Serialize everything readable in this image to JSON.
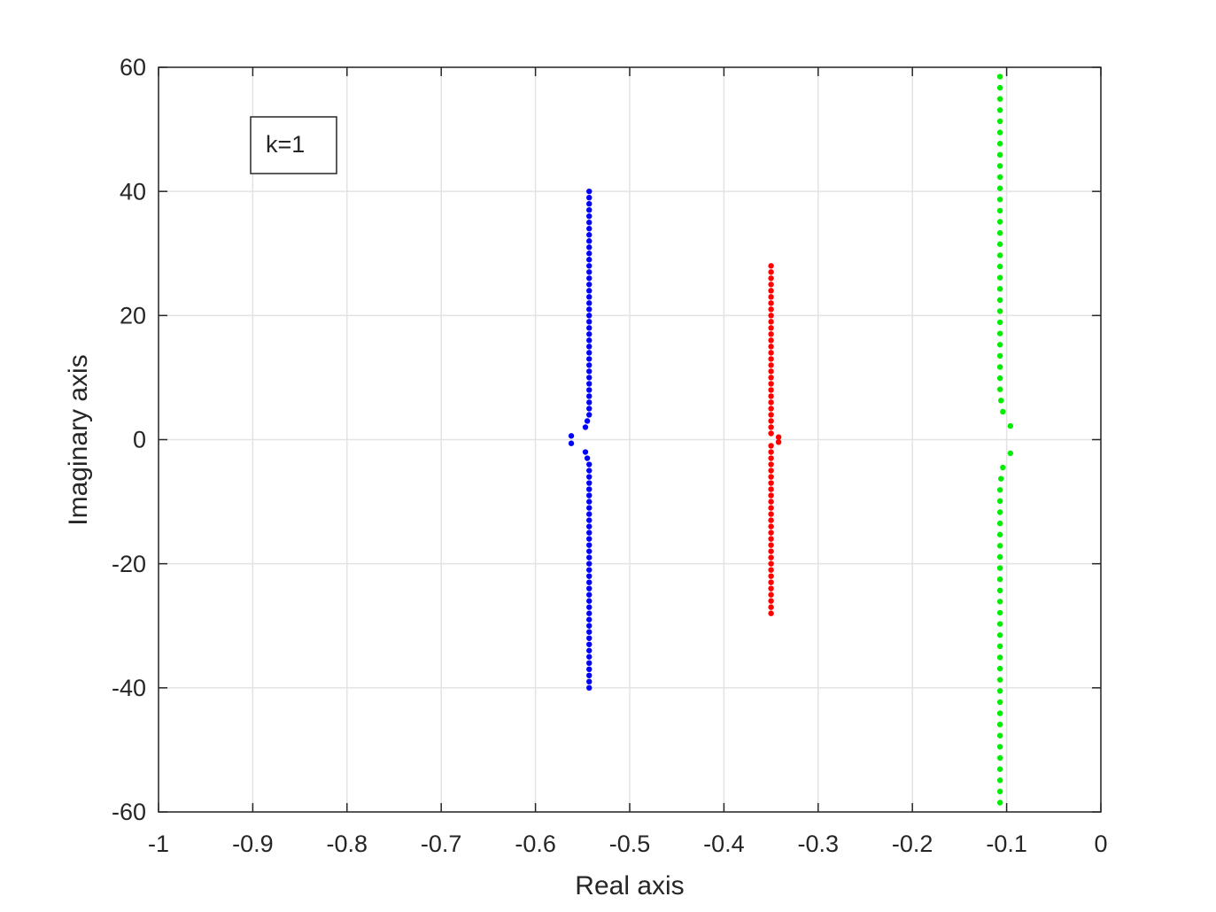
{
  "chart_data": {
    "type": "scatter",
    "xlabel": "Real axis",
    "ylabel": "Imaginary axis",
    "annotation": "k=1",
    "xlim": [
      -1,
      0
    ],
    "xticks": [
      -1,
      -0.9,
      -0.8,
      -0.7,
      -0.6,
      -0.5,
      -0.4,
      -0.3,
      -0.2,
      -0.1,
      0
    ],
    "ylim": [
      -60,
      60
    ],
    "yticks": [
      -60,
      -40,
      -20,
      0,
      20,
      40,
      60
    ],
    "grid": true,
    "series": [
      {
        "color": "#0000ff",
        "x": [
          -0.543,
          -0.543,
          -0.543,
          -0.543,
          -0.543,
          -0.543,
          -0.543,
          -0.543,
          -0.543,
          -0.543,
          -0.543,
          -0.543,
          -0.543,
          -0.543,
          -0.543,
          -0.543,
          -0.543,
          -0.543,
          -0.543,
          -0.543,
          -0.543,
          -0.543,
          -0.543,
          -0.543,
          -0.543,
          -0.543,
          -0.543,
          -0.543,
          -0.543,
          -0.543,
          -0.543,
          -0.543,
          -0.543,
          -0.543,
          -0.543,
          -0.543,
          -0.543,
          -0.545,
          -0.547,
          -0.547,
          -0.545,
          -0.543,
          -0.543,
          -0.543,
          -0.543,
          -0.543,
          -0.543,
          -0.543,
          -0.543,
          -0.543,
          -0.543,
          -0.543,
          -0.543,
          -0.543,
          -0.543,
          -0.543,
          -0.543,
          -0.543,
          -0.543,
          -0.543,
          -0.543,
          -0.543,
          -0.543,
          -0.543,
          -0.543,
          -0.543,
          -0.543,
          -0.543,
          -0.543,
          -0.543,
          -0.543,
          -0.543,
          -0.543,
          -0.543,
          -0.543,
          -0.543,
          -0.543,
          -0.543,
          -0.562,
          -0.562
        ],
        "y": [
          40,
          39,
          38,
          37,
          36,
          35,
          34,
          33,
          32,
          31,
          30,
          29,
          28,
          27,
          26,
          25,
          24,
          23,
          22,
          21,
          20,
          19,
          18,
          17,
          16,
          15,
          14,
          13,
          12,
          11,
          10,
          9,
          8,
          7,
          6,
          5,
          4,
          3,
          2,
          -2,
          -3,
          -4,
          -5,
          -6,
          -7,
          -8,
          -9,
          -10,
          -11,
          -12,
          -13,
          -14,
          -15,
          -16,
          -17,
          -18,
          -19,
          -20,
          -21,
          -22,
          -23,
          -24,
          -25,
          -26,
          -27,
          -28,
          -29,
          -30,
          -31,
          -32,
          -33,
          -34,
          -35,
          -36,
          -37,
          -38,
          -39,
          -40,
          0.6,
          -0.6
        ]
      },
      {
        "color": "#ff0000",
        "x": [
          -0.35,
          -0.35,
          -0.35,
          -0.35,
          -0.35,
          -0.35,
          -0.35,
          -0.35,
          -0.35,
          -0.35,
          -0.35,
          -0.35,
          -0.35,
          -0.35,
          -0.35,
          -0.35,
          -0.35,
          -0.35,
          -0.35,
          -0.35,
          -0.35,
          -0.35,
          -0.35,
          -0.35,
          -0.35,
          -0.35,
          -0.35,
          -0.35,
          -0.35,
          -0.35,
          -0.35,
          -0.35,
          -0.35,
          -0.35,
          -0.35,
          -0.35,
          -0.35,
          -0.35,
          -0.35,
          -0.35,
          -0.35,
          -0.35,
          -0.35,
          -0.35,
          -0.35,
          -0.35,
          -0.35,
          -0.35,
          -0.35,
          -0.35,
          -0.35,
          -0.35,
          -0.35,
          -0.35,
          -0.35,
          -0.35,
          -0.342,
          -0.342
        ],
        "y": [
          28,
          27,
          26,
          25,
          24,
          23,
          22,
          21,
          20,
          19,
          18,
          17,
          16,
          15,
          14,
          13,
          12,
          11,
          10,
          9,
          8,
          7,
          6,
          5,
          4,
          3,
          2,
          1,
          -1,
          -2,
          -3,
          -4,
          -5,
          -6,
          -7,
          -8,
          -9,
          -10,
          -11,
          -12,
          -13,
          -14,
          -15,
          -16,
          -17,
          -18,
          -19,
          -20,
          -21,
          -22,
          -23,
          -24,
          -25,
          -26,
          -27,
          -28,
          0.4,
          -0.4
        ]
      },
      {
        "color": "#00ee00",
        "x": [
          -0.107,
          -0.107,
          -0.107,
          -0.107,
          -0.107,
          -0.107,
          -0.107,
          -0.107,
          -0.107,
          -0.107,
          -0.107,
          -0.107,
          -0.107,
          -0.107,
          -0.107,
          -0.107,
          -0.107,
          -0.107,
          -0.107,
          -0.107,
          -0.107,
          -0.107,
          -0.107,
          -0.107,
          -0.107,
          -0.107,
          -0.107,
          -0.107,
          -0.107,
          -0.106,
          -0.104,
          -0.104,
          -0.106,
          -0.107,
          -0.107,
          -0.107,
          -0.107,
          -0.107,
          -0.107,
          -0.107,
          -0.107,
          -0.107,
          -0.107,
          -0.107,
          -0.107,
          -0.107,
          -0.107,
          -0.107,
          -0.107,
          -0.107,
          -0.107,
          -0.107,
          -0.107,
          -0.107,
          -0.107,
          -0.107,
          -0.107,
          -0.107,
          -0.107,
          -0.107,
          -0.107,
          -0.107,
          -0.096,
          -0.096
        ],
        "y": [
          58.5,
          56.7,
          54.9,
          53.1,
          51.3,
          49.5,
          47.7,
          45.9,
          44.1,
          42.3,
          40.5,
          38.7,
          36.9,
          35.1,
          33.3,
          31.5,
          29.7,
          27.9,
          26.1,
          24.3,
          22.5,
          20.7,
          18.9,
          17.1,
          15.3,
          13.5,
          11.7,
          9.9,
          8.1,
          6.3,
          4.5,
          -4.5,
          -6.3,
          -8.1,
          -9.9,
          -11.7,
          -13.5,
          -15.3,
          -17.1,
          -18.9,
          -20.7,
          -22.5,
          -24.3,
          -26.1,
          -27.9,
          -29.7,
          -31.5,
          -33.3,
          -35.1,
          -36.9,
          -38.7,
          -40.5,
          -42.3,
          -44.1,
          -45.9,
          -47.7,
          -49.5,
          -51.3,
          -53.1,
          -54.9,
          -56.7,
          -58.5,
          2.2,
          -2.2
        ]
      }
    ]
  }
}
